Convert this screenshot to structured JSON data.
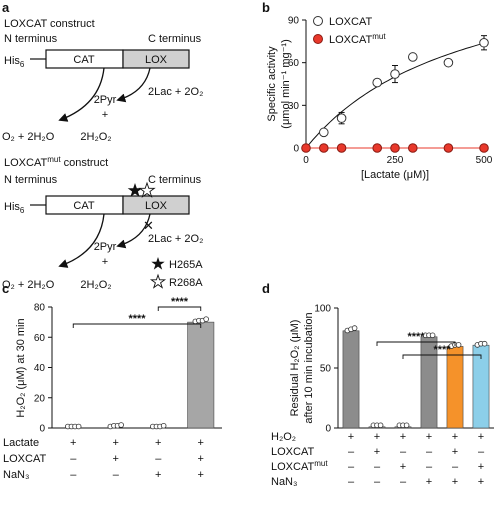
{
  "panels": {
    "a": {
      "label": "a",
      "loxcat": {
        "title": "LOXCAT construct",
        "n_term": "N terminus",
        "c_term": "C terminus",
        "his": "His",
        "his_sub": "6",
        "domain1": "CAT",
        "domain2": "LOX",
        "rxn_left": "O₂ + 2H₂O",
        "rxn_mid1": "2Pyr",
        "rxn_mid2": "+",
        "rxn_mid3": "2H₂O₂",
        "rxn_right": "2Lac + 2O₂"
      },
      "mut": {
        "title": "LOXCAT",
        "title_sup": "mut",
        "title_rest": " construct",
        "n_term": "N terminus",
        "c_term": "C terminus",
        "his": "His",
        "his_sub": "6",
        "domain1": "CAT",
        "domain2": "LOX",
        "rxn_left": "O₂ + 2H₂O",
        "rxn_mid1": "2Pyr",
        "rxn_mid2": "+",
        "rxn_mid3": "2H₂O₂",
        "rxn_right": "2Lac + 2O₂",
        "legend1": "H265A",
        "legend2": "R268A"
      }
    }
  },
  "chart_data": [
    {
      "panel": "b",
      "type": "scatter",
      "xlabel": "[Lactate (μM)]",
      "ylabel_line1": "Specific activity",
      "ylabel_line2": "(μmol min⁻¹ mg⁻¹)",
      "xlim": [
        0,
        500
      ],
      "ylim": [
        0,
        90
      ],
      "xticks": [
        0,
        250,
        500
      ],
      "yticks": [
        0,
        30,
        60,
        90
      ],
      "legend": "top-left",
      "series": [
        {
          "name": "LOXCAT",
          "name_sup": "",
          "color": "#ffffff",
          "stroke": "#333333",
          "x": [
            50,
            100,
            200,
            250,
            300,
            400,
            500
          ],
          "y": [
            11,
            21,
            46,
            52,
            64,
            60,
            74
          ],
          "err": [
            2,
            4,
            2,
            6,
            2,
            1,
            5
          ],
          "fit": {
            "vmax": 140,
            "km": 450
          }
        },
        {
          "name": "LOXCAT",
          "name_sup": "mut",
          "color": "#e8382b",
          "stroke": "#8a1a12",
          "x": [
            0,
            50,
            100,
            200,
            250,
            300,
            400,
            500
          ],
          "y": [
            0,
            0,
            0,
            0,
            0,
            0,
            0,
            0
          ],
          "err": [
            0,
            0,
            0,
            0,
            0,
            0,
            0,
            0
          ],
          "line_color": "#e8382b"
        }
      ]
    },
    {
      "panel": "c",
      "type": "bar",
      "ylabel": "H₂O₂ (μM) at 30 min",
      "ylim": [
        0,
        80
      ],
      "yticks": [
        0,
        20,
        40,
        60,
        80
      ],
      "values": [
        0,
        0.5,
        0,
        70
      ],
      "colors": [
        "#cccccc",
        "#cccccc",
        "#cccccc",
        "#a6a6a6"
      ],
      "points": [
        [
          0,
          0,
          0,
          0
        ],
        [
          0,
          0.5,
          0.5,
          1
        ],
        [
          0,
          0,
          0,
          0.5
        ],
        [
          69.5,
          70,
          70,
          71
        ]
      ],
      "condition_rows": [
        {
          "label": "Lactate",
          "signs": [
            "+",
            "+",
            "+",
            "+"
          ]
        },
        {
          "label": "LOXCAT",
          "signs": [
            "–",
            "+",
            "–",
            "+"
          ]
        },
        {
          "label": "NaN₃",
          "signs": [
            "–",
            "–",
            "+",
            "+"
          ]
        }
      ],
      "significance": [
        {
          "from": 0,
          "to": 3,
          "text": "****"
        },
        {
          "from": 2,
          "to": 3,
          "text": "****"
        }
      ]
    },
    {
      "panel": "d",
      "type": "bar",
      "ylabel_line1": "Residual H₂O₂ (μM)",
      "ylabel_line2": "after 10 min incubation",
      "ylim": [
        0,
        100
      ],
      "yticks": [
        0,
        50,
        100
      ],
      "values": [
        81,
        1,
        1,
        76,
        68,
        69
      ],
      "colors": [
        "#8c8c8c",
        "#8c8c8c",
        "#8c8c8c",
        "#8c8c8c",
        "#f5922a",
        "#8ccfe9"
      ],
      "points": [
        [
          80,
          81,
          82
        ],
        [
          1,
          1,
          1
        ],
        [
          1,
          1,
          1
        ],
        [
          76,
          76,
          76
        ],
        [
          67,
          68,
          68
        ],
        [
          68,
          69,
          69
        ]
      ],
      "condition_rows": [
        {
          "label": "H₂O₂",
          "signs": [
            "+",
            "+",
            "+",
            "+",
            "+",
            "+"
          ]
        },
        {
          "label": "LOXCAT",
          "signs": [
            "–",
            "+",
            "–",
            "–",
            "+",
            "–"
          ]
        },
        {
          "label": "LOXCAT",
          "label_sup": "mut",
          "signs": [
            "–",
            "–",
            "+",
            "–",
            "–",
            "+"
          ]
        },
        {
          "label": "NaN₃",
          "signs": [
            "–",
            "–",
            "–",
            "+",
            "+",
            "+"
          ]
        }
      ],
      "significance": [
        {
          "from": 1,
          "to": 4,
          "text": "****"
        },
        {
          "from": 2,
          "to": 5,
          "text": "****"
        }
      ]
    }
  ]
}
